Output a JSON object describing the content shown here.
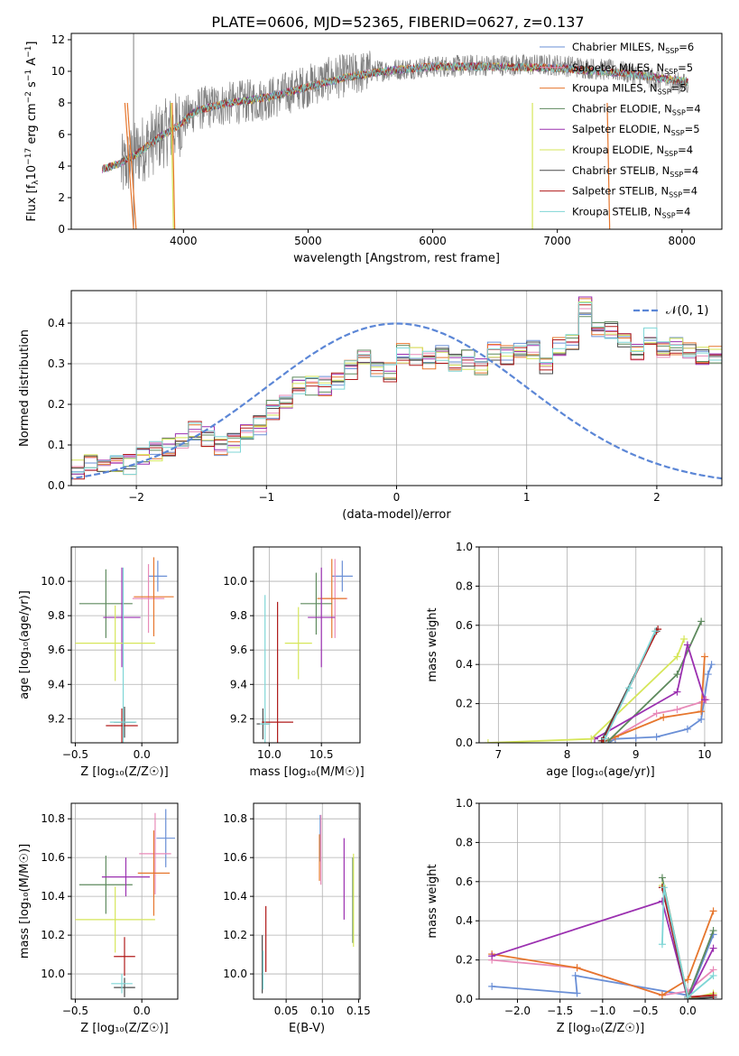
{
  "figure": {
    "title": "PLATE=0606, MJD=52365, FIBERID=0627, z=0.137"
  },
  "models": [
    {
      "name": "Chabrier MILES",
      "nssp": "6",
      "color": "#6a8fd6"
    },
    {
      "name": "Salpeter MILES",
      "nssp": "5",
      "color": "#e88ab8"
    },
    {
      "name": "Kroupa MILES",
      "nssp": "5",
      "color": "#e6762d"
    },
    {
      "name": "Chabrier ELODIE",
      "nssp": "4",
      "color": "#5e8a5e"
    },
    {
      "name": "Salpeter ELODIE",
      "nssp": "5",
      "color": "#9b30b0"
    },
    {
      "name": "Kroupa ELODIE",
      "nssp": "4",
      "color": "#d6e65a"
    },
    {
      "name": "Chabrier STELIB",
      "nssp": "4",
      "color": "#4a4a4a"
    },
    {
      "name": "Salpeter STELIB",
      "nssp": "4",
      "color": "#b01a1a"
    },
    {
      "name": "Kroupa STELIB",
      "nssp": "4",
      "color": "#7fd6d6"
    }
  ],
  "legend_template": {
    "nssp_prefix": "N",
    "nssp_sub": "SSP",
    "eq": "="
  },
  "chart_data": [
    {
      "id": "spectrum",
      "type": "line",
      "xlabel": "wavelength [Angstrom, rest frame]",
      "ylabel_parts": [
        "Flux [f",
        "λ",
        "10",
        "−17",
        " erg cm",
        "−2",
        " s",
        "−1",
        " A",
        "−1",
        "]"
      ],
      "xlim": [
        3100,
        8320
      ],
      "ylim": [
        0,
        12.4
      ],
      "xticks": [
        4000,
        5000,
        6000,
        7000,
        8000
      ],
      "yticks": [
        0,
        2,
        4,
        6,
        8,
        10,
        12
      ],
      "data_color": "#808080",
      "data_trend": [
        [
          3500,
          3.8
        ],
        [
          3650,
          5.0
        ],
        [
          3800,
          5.8
        ],
        [
          3950,
          6.6
        ],
        [
          4100,
          7.6
        ],
        [
          4400,
          8.0
        ],
        [
          4700,
          8.3
        ],
        [
          5000,
          9.1
        ],
        [
          5200,
          9.6
        ],
        [
          5500,
          10.0
        ],
        [
          6000,
          10.3
        ],
        [
          6500,
          10.4
        ],
        [
          7000,
          10.4
        ],
        [
          7500,
          10.0
        ],
        [
          8000,
          9.2
        ]
      ],
      "model_trend": [
        [
          3350,
          3.8
        ],
        [
          3500,
          4.2
        ],
        [
          3650,
          4.9
        ],
        [
          3800,
          5.8
        ],
        [
          3950,
          6.5
        ],
        [
          4100,
          7.5
        ],
        [
          4300,
          7.9
        ],
        [
          4700,
          8.4
        ],
        [
          5000,
          9.0
        ],
        [
          5300,
          9.6
        ],
        [
          5600,
          10.0
        ],
        [
          6000,
          10.3
        ],
        [
          6500,
          10.3
        ],
        [
          7000,
          10.2
        ],
        [
          7500,
          9.9
        ],
        [
          8000,
          9.4
        ],
        [
          8050,
          9.3
        ]
      ],
      "data_range": [
        3500,
        8050
      ],
      "model_range": [
        3350,
        8050
      ],
      "model_edges": [
        [
          3530,
          3600
        ],
        [
          3550,
          3620
        ],
        [
          3900,
          3920
        ],
        [
          3910,
          3930
        ],
        [
          6800,
          6800
        ],
        [
          7400,
          7420
        ]
      ]
    },
    {
      "id": "residuals",
      "type": "step-histogram",
      "xlabel": "(data-model)/error",
      "ylabel": "Normed distribution",
      "xlim": [
        -2.5,
        2.5
      ],
      "ylim": [
        0,
        0.48
      ],
      "xticks": [
        -2,
        -1,
        0,
        1,
        2
      ],
      "yticks": [
        0.0,
        0.1,
        0.2,
        0.3,
        0.4
      ],
      "bin_width": 0.1,
      "gaussian_label": "𝒩(0, 1)",
      "gaussian_color": "#5b86d6",
      "base_hist": [
        0.03,
        0.04,
        0.055,
        0.058,
        0.05,
        0.052,
        0.075,
        0.085,
        0.095,
        0.112,
        0.135,
        0.12,
        0.098,
        0.105,
        0.13,
        0.15,
        0.185,
        0.215,
        0.25,
        0.245,
        0.245,
        0.255,
        0.285,
        0.31,
        0.285,
        0.28,
        0.325,
        0.32,
        0.31,
        0.32,
        0.3,
        0.31,
        0.29,
        0.33,
        0.32,
        0.34,
        0.335,
        0.3,
        0.34,
        0.355,
        0.44,
        0.385,
        0.38,
        0.365,
        0.33,
        0.37,
        0.34,
        0.34,
        0.33,
        0.32,
        0.325,
        0.3,
        0.3,
        0.28,
        0.3,
        0.285,
        0.25,
        0.2,
        0.18,
        0.17,
        0.175,
        0.15,
        0.135,
        0.13,
        0.115,
        0.11,
        0.115,
        0.11,
        0.1,
        0.095,
        0.075,
        0.09,
        0.07,
        0.075,
        0.06,
        0.055,
        0.055,
        0.045,
        0.042,
        0.035,
        0.03,
        0.025
      ]
    },
    {
      "id": "z-age",
      "type": "errorbar",
      "xlabel": "Z [log₁₀(Z/Z☉)]",
      "ylabel": "age [log₁₀(age/yr)]",
      "xlim": [
        -0.53,
        0.27
      ],
      "ylim": [
        9.06,
        10.2
      ],
      "xticks": [
        -0.5,
        0.0
      ],
      "xtick_labels": [
        "−0.5",
        "0.0"
      ],
      "yticks": [
        9.2,
        9.4,
        9.6,
        9.8,
        10.0
      ],
      "points": [
        {
          "x": 0.12,
          "xerr": 0.07,
          "y": 10.03,
          "yerr": 0.09
        },
        {
          "x": 0.05,
          "xerr": 0.12,
          "y": 9.9,
          "yerr": 0.2
        },
        {
          "x": 0.09,
          "xerr": 0.15,
          "y": 9.91,
          "yerr": 0.23
        },
        {
          "x": -0.27,
          "xerr": 0.2,
          "y": 9.87,
          "yerr": 0.2
        },
        {
          "x": -0.15,
          "xerr": 0.14,
          "y": 9.79,
          "yerr": 0.29
        },
        {
          "x": -0.2,
          "xerr": 0.3,
          "y": 9.64,
          "yerr": 0.22
        },
        {
          "x": -0.13,
          "xerr": 0.08,
          "y": 9.18,
          "yerr": 0.09
        },
        {
          "x": -0.15,
          "xerr": 0.12,
          "y": 9.16,
          "yerr": 0.1
        },
        {
          "x": -0.14,
          "xerr": 0.1,
          "y": 9.18,
          "yerr": 0.9
        }
      ]
    },
    {
      "id": "mass-age",
      "type": "errorbar",
      "xlabel": "mass [log₁₀(M/M☉)]",
      "ylabel": "",
      "xlim": [
        9.85,
        10.87
      ],
      "ylim": [
        9.06,
        10.2
      ],
      "xticks": [
        10.0,
        10.5
      ],
      "yticks": [
        9.2,
        9.4,
        9.6,
        9.8,
        10.0
      ],
      "points": [
        {
          "x": 10.7,
          "xerr": 0.1,
          "y": 10.03,
          "yerr": 0.09
        },
        {
          "x": 10.63,
          "xerr": 0.12,
          "y": 9.9,
          "yerr": 0.23
        },
        {
          "x": 10.6,
          "xerr": 0.14,
          "y": 9.9,
          "yerr": 0.23
        },
        {
          "x": 10.45,
          "xerr": 0.15,
          "y": 9.87,
          "yerr": 0.18
        },
        {
          "x": 10.5,
          "xerr": 0.13,
          "y": 9.79,
          "yerr": 0.29
        },
        {
          "x": 10.28,
          "xerr": 0.13,
          "y": 9.64,
          "yerr": 0.21
        },
        {
          "x": 9.94,
          "xerr": 0.06,
          "y": 9.17,
          "yerr": 0.09
        },
        {
          "x": 10.08,
          "xerr": 0.15,
          "y": 9.18,
          "yerr": 0.7
        },
        {
          "x": 9.96,
          "xerr": 0.05,
          "y": 9.17,
          "yerr": 0.75
        }
      ]
    },
    {
      "id": "age-weight",
      "type": "line",
      "xlabel": "age  [log₁₀(age/yr)]",
      "ylabel": "mass weight",
      "xlim": [
        6.72,
        10.25
      ],
      "ylim": [
        0,
        1.0
      ],
      "xticks": [
        7,
        8,
        9,
        10
      ],
      "yticks": [
        0.0,
        0.2,
        0.4,
        0.6,
        0.8,
        1.0
      ],
      "series": [
        {
          "points": [
            [
              8.6,
              0.0
            ],
            [
              8.7,
              0.02
            ],
            [
              9.0,
              0.025
            ],
            [
              9.3,
              0.03
            ],
            [
              9.75,
              0.07
            ],
            [
              9.95,
              0.12
            ],
            [
              10.05,
              0.35
            ],
            [
              10.1,
              0.4
            ]
          ]
        },
        {
          "points": [
            [
              8.6,
              0.01
            ],
            [
              9.3,
              0.15
            ],
            [
              9.6,
              0.17
            ],
            [
              9.97,
              0.21
            ],
            [
              10.02,
              0.22
            ]
          ]
        },
        {
          "points": [
            [
              8.5,
              0.0
            ],
            [
              8.7,
              0.03
            ],
            [
              9.4,
              0.13
            ],
            [
              9.95,
              0.16
            ],
            [
              10.0,
              0.44
            ]
          ]
        },
        {
          "points": [
            [
              8.6,
              0.01
            ],
            [
              9.6,
              0.35
            ],
            [
              9.95,
              0.62
            ]
          ]
        },
        {
          "points": [
            [
              8.4,
              0.02
            ],
            [
              9.6,
              0.26
            ],
            [
              9.75,
              0.5
            ],
            [
              10.0,
              0.22
            ]
          ]
        },
        {
          "points": [
            [
              6.85,
              0.0
            ],
            [
              8.35,
              0.02
            ],
            [
              9.6,
              0.44
            ],
            [
              9.7,
              0.53
            ]
          ]
        },
        {
          "points": [
            [
              8.5,
              0.01
            ],
            [
              9.3,
              0.57
            ]
          ]
        },
        {
          "points": [
            [
              8.52,
              0.01
            ],
            [
              9.32,
              0.58
            ]
          ]
        },
        {
          "points": [
            [
              8.55,
              0.02
            ],
            [
              8.9,
              0.28
            ],
            [
              9.28,
              0.57
            ]
          ]
        }
      ]
    },
    {
      "id": "z-mass",
      "type": "errorbar",
      "xlabel": "Z [log₁₀(Z/Z☉)]",
      "ylabel": "mass [log₁₀(M/M☉)]",
      "xlim": [
        -0.53,
        0.27
      ],
      "ylim": [
        9.87,
        10.88
      ],
      "xticks": [
        -0.5,
        0.0
      ],
      "xtick_labels": [
        "−0.5",
        "0.0"
      ],
      "yticks": [
        10.0,
        10.2,
        10.4,
        10.6,
        10.8
      ],
      "points": [
        {
          "x": 0.18,
          "xerr": 0.07,
          "y": 10.7,
          "yerr": 0.15
        },
        {
          "x": 0.1,
          "xerr": 0.12,
          "y": 10.62,
          "yerr": 0.21
        },
        {
          "x": 0.09,
          "xerr": 0.12,
          "y": 10.52,
          "yerr": 0.22
        },
        {
          "x": -0.27,
          "xerr": 0.2,
          "y": 10.46,
          "yerr": 0.15
        },
        {
          "x": -0.12,
          "xerr": 0.18,
          "y": 10.5,
          "yerr": 0.1
        },
        {
          "x": -0.2,
          "xerr": 0.3,
          "y": 10.28,
          "yerr": 0.17
        },
        {
          "x": -0.13,
          "xerr": 0.08,
          "y": 9.93,
          "yerr": 0.05
        },
        {
          "x": -0.13,
          "xerr": 0.08,
          "y": 10.09,
          "yerr": 0.1
        },
        {
          "x": -0.15,
          "xerr": 0.08,
          "y": 9.95,
          "yerr": 0.05
        }
      ]
    },
    {
      "id": "ebv-mass",
      "type": "errorbar",
      "xlabel": "E(B-V)",
      "ylabel": "",
      "xlim": [
        0.005,
        0.152
      ],
      "ylim": [
        9.87,
        10.88
      ],
      "xticks": [
        0.05,
        0.1,
        0.15
      ],
      "xtick_labels": [
        "0.05",
        "0.10",
        "0.15"
      ],
      "yticks": [
        10.0,
        10.2,
        10.4,
        10.6,
        10.8
      ],
      "points": [
        {
          "x": 0.097,
          "xerr": 0,
          "y": 10.7,
          "yerr": 0.12
        },
        {
          "x": 0.098,
          "xerr": 0,
          "y": 10.64,
          "yerr": 0.18
        },
        {
          "x": 0.096,
          "xerr": 0,
          "y": 10.6,
          "yerr": 0.12
        },
        {
          "x": 0.142,
          "xerr": 0,
          "y": 10.38,
          "yerr": 0.22
        },
        {
          "x": 0.13,
          "xerr": 0,
          "y": 10.49,
          "yerr": 0.21
        },
        {
          "x": 0.143,
          "xerr": 0,
          "y": 10.38,
          "yerr": 0.24
        },
        {
          "x": 0.017,
          "xerr": 0,
          "y": 10.05,
          "yerr": 0.15
        },
        {
          "x": 0.022,
          "xerr": 0,
          "y": 10.18,
          "yerr": 0.17
        },
        {
          "x": 0.018,
          "xerr": 0,
          "y": 10.02,
          "yerr": 0.1
        }
      ]
    },
    {
      "id": "z-weight",
      "type": "line",
      "xlabel": "Z [log₁₀(Z/Z☉)]",
      "ylabel": "mass weight",
      "xlim": [
        -2.45,
        0.4
      ],
      "ylim": [
        0,
        1.0
      ],
      "xticks": [
        -2.0,
        -1.5,
        -1.0,
        -0.5,
        0.0
      ],
      "xtick_labels": [
        "−2.0",
        "−1.5",
        "−1.0",
        "−0.5",
        "0.0"
      ],
      "yticks": [
        0.0,
        0.2,
        0.4,
        0.6,
        0.8,
        1.0
      ],
      "series": [
        {
          "points": [
            [
              -2.3,
              0.065
            ],
            [
              -1.3,
              0.03
            ],
            [
              -1.32,
              0.12
            ],
            [
              0.0,
              0.02
            ],
            [
              0.0,
              0.0
            ],
            [
              0.3,
              0.33
            ]
          ]
        },
        {
          "points": [
            [
              -2.3,
              0.2
            ],
            [
              -1.3,
              0.16
            ],
            [
              -0.3,
              0.02
            ],
            [
              0.0,
              0.04
            ],
            [
              0.3,
              0.15
            ]
          ]
        },
        {
          "points": [
            [
              -2.3,
              0.23
            ],
            [
              -1.3,
              0.16
            ],
            [
              -0.3,
              0.02
            ],
            [
              0.0,
              0.1
            ],
            [
              0.3,
              0.45
            ]
          ]
        },
        {
          "points": [
            [
              -0.3,
              0.62
            ],
            [
              0.0,
              0.01
            ],
            [
              0.3,
              0.35
            ]
          ]
        },
        {
          "points": [
            [
              -2.3,
              0.22
            ],
            [
              -0.3,
              0.5
            ],
            [
              0.0,
              0.0
            ],
            [
              0.3,
              0.26
            ]
          ]
        },
        {
          "points": [
            [
              -0.3,
              0.58
            ],
            [
              0.0,
              0.0
            ],
            [
              0.3,
              0.03
            ]
          ]
        },
        {
          "points": [
            [
              -0.3,
              0.57
            ],
            [
              0.0,
              0.0
            ],
            [
              0.3,
              0.01
            ]
          ]
        },
        {
          "points": [
            [
              -0.3,
              0.57
            ],
            [
              0.0,
              0.01
            ],
            [
              0.3,
              0.02
            ]
          ]
        },
        {
          "points": [
            [
              -0.3,
              0.28
            ],
            [
              -0.28,
              0.57
            ],
            [
              0.0,
              0.01
            ],
            [
              0.3,
              0.12
            ]
          ]
        }
      ]
    }
  ]
}
